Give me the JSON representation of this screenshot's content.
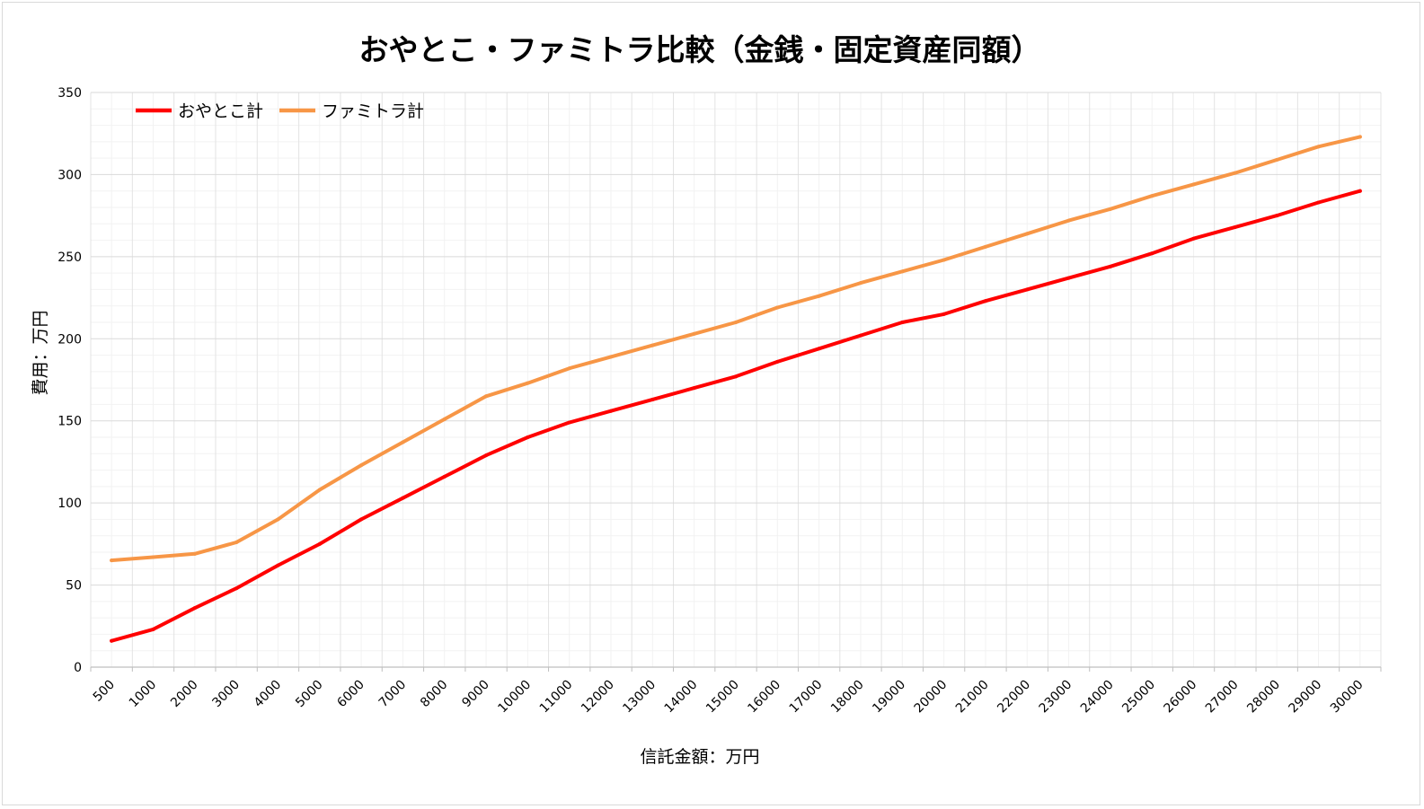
{
  "chart_data": {
    "type": "line",
    "title": "おやとこ・ファミトラ比較（金銭・固定資産同額）",
    "xlabel": "信託金額：万円",
    "ylabel": "費用：万円",
    "ylim": [
      0,
      350
    ],
    "yticks": [
      0,
      50,
      100,
      150,
      200,
      250,
      300,
      350
    ],
    "grid": true,
    "legend_position": "top-left",
    "categories": [
      "500",
      "1000",
      "2000",
      "3000",
      "4000",
      "5000",
      "6000",
      "7000",
      "8000",
      "9000",
      "10000",
      "11000",
      "12000",
      "13000",
      "14000",
      "15000",
      "16000",
      "17000",
      "18000",
      "19000",
      "20000",
      "21000",
      "22000",
      "23000",
      "24000",
      "25000",
      "26000",
      "27000",
      "28000",
      "29000",
      "30000"
    ],
    "series": [
      {
        "name": "おやとこ計",
        "color": "#ff0000",
        "values": [
          16,
          23,
          36,
          48,
          62,
          75,
          90,
          103,
          116,
          129,
          140,
          149,
          156,
          163,
          170,
          177,
          186,
          194,
          202,
          210,
          215,
          223,
          230,
          237,
          244,
          252,
          261,
          268,
          275,
          283,
          290
        ]
      },
      {
        "name": "ファミトラ計",
        "color": "#f79646",
        "values": [
          65,
          67,
          69,
          76,
          90,
          108,
          123,
          137,
          151,
          165,
          173,
          182,
          189,
          196,
          203,
          210,
          219,
          226,
          234,
          241,
          248,
          256,
          264,
          272,
          279,
          287,
          294,
          301,
          309,
          317,
          323
        ]
      }
    ]
  }
}
